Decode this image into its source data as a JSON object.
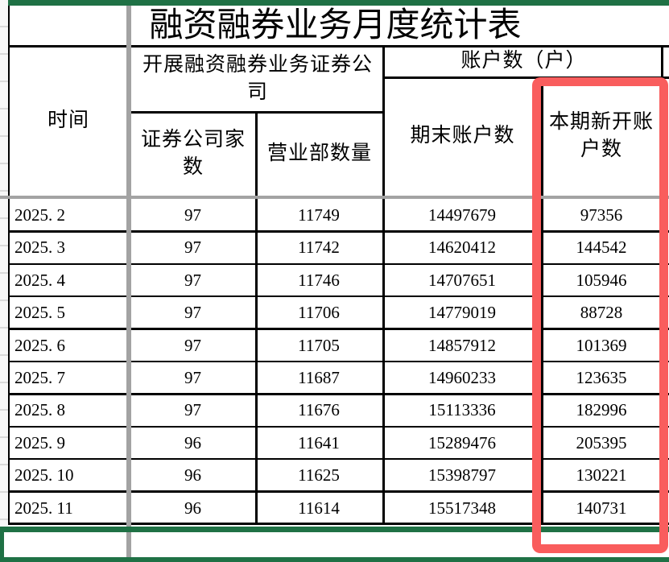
{
  "title": "融资融券业务月度统计表",
  "header": {
    "time": "时间",
    "company_group": "开展融资融券业务证券公司",
    "accounts_group": "账户数（户）",
    "company_count": "证券公司家数",
    "branch_count": "营业部数量",
    "period_end_accounts": "期末账户数",
    "new_accounts": "本期新开账户数"
  },
  "rows": [
    {
      "time": "2025. 2",
      "companies": "97",
      "branches": "11749",
      "period_end": "14497679",
      "new_accounts": "97356"
    },
    {
      "time": "2025. 3",
      "companies": "97",
      "branches": "11742",
      "period_end": "14620412",
      "new_accounts": "144542"
    },
    {
      "time": "2025. 4",
      "companies": "97",
      "branches": "11746",
      "period_end": "14707651",
      "new_accounts": "105946"
    },
    {
      "time": "2025. 5",
      "companies": "97",
      "branches": "11706",
      "period_end": "14779019",
      "new_accounts": "88728"
    },
    {
      "time": "2025. 6",
      "companies": "97",
      "branches": "11705",
      "period_end": "14857912",
      "new_accounts": "101369"
    },
    {
      "time": "2025. 7",
      "companies": "97",
      "branches": "11687",
      "period_end": "14960233",
      "new_accounts": "123635"
    },
    {
      "time": "2025. 8",
      "companies": "97",
      "branches": "11676",
      "period_end": "15113336",
      "new_accounts": "182996"
    },
    {
      "time": "2025. 9",
      "companies": "96",
      "branches": "11641",
      "period_end": "15289476",
      "new_accounts": "205395"
    },
    {
      "time": "2025. 10",
      "companies": "96",
      "branches": "11625",
      "period_end": "15398797",
      "new_accounts": "130221"
    },
    {
      "time": "2025. 11",
      "companies": "96",
      "branches": "11614",
      "period_end": "15517348",
      "new_accounts": "140731"
    }
  ],
  "colors": {
    "selection_green": "#1f7145",
    "highlight_red": "#f95d5d",
    "divider_gray": "#a3a3a3"
  }
}
